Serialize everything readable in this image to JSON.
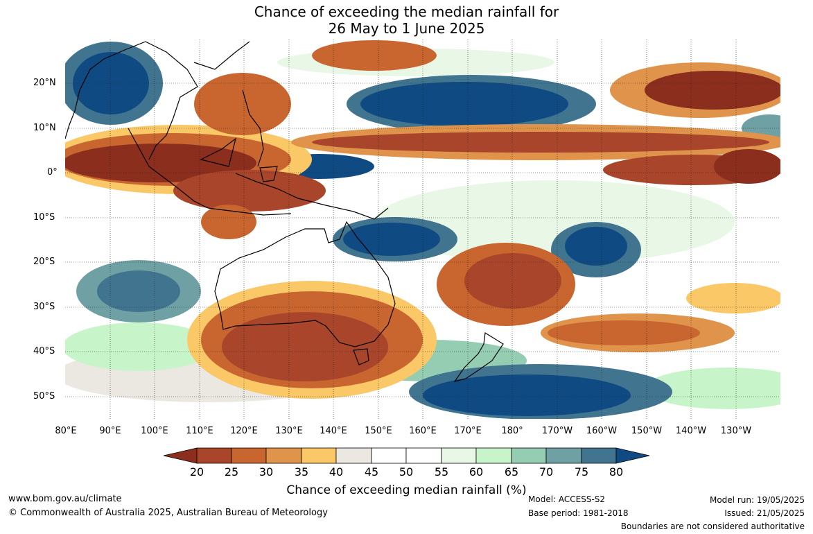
{
  "title": {
    "line1": "Chance of exceeding the median rainfall for",
    "line2": "26 May to 1 June 2025"
  },
  "map": {
    "lat_labels": [
      "20°N",
      "10°N",
      "0°",
      "10°S",
      "20°S",
      "30°S",
      "40°S",
      "50°S"
    ],
    "lon_labels": [
      "80°E",
      "90°E",
      "100°E",
      "110°E",
      "120°E",
      "130°E",
      "140°E",
      "150°E",
      "160°E",
      "170°E",
      "180°",
      "170°W",
      "160°W",
      "150°W",
      "140°W",
      "130°W"
    ],
    "extent": {
      "lon_min": 80,
      "lon_max": 240,
      "lat_min": -55,
      "lat_max": 30
    },
    "projection": "plate-carree",
    "gridlines": "dotted"
  },
  "legend": {
    "title": "Chance of exceeding median rainfall (%)",
    "ticks": [
      "20",
      "25",
      "30",
      "35",
      "40",
      "45",
      "50",
      "55",
      "60",
      "65",
      "70",
      "75",
      "80"
    ],
    "colors": [
      "#8b2e1e",
      "#a8452a",
      "#c9652f",
      "#e0934a",
      "#fbc867",
      "#ebe7e1",
      "#ffffff",
      "#ffffff",
      "#e8f7e6",
      "#c7f5c9",
      "#95cdb3",
      "#6ea0a4",
      "#41748f",
      "#0f4a82"
    ],
    "extend": "both"
  },
  "footer": {
    "website": "www.bom.gov.au/climate",
    "copyright": "© Commonwealth of Australia 2025, Australian Bureau of Meteorology",
    "model": "Model: ACCESS-S2",
    "base_period": "Base period: 1981-2018",
    "model_run": "Model run: 19/05/2025",
    "issued": "Issued: 21/05/2025",
    "boundaries": "Boundaries are not considered authoritative"
  }
}
